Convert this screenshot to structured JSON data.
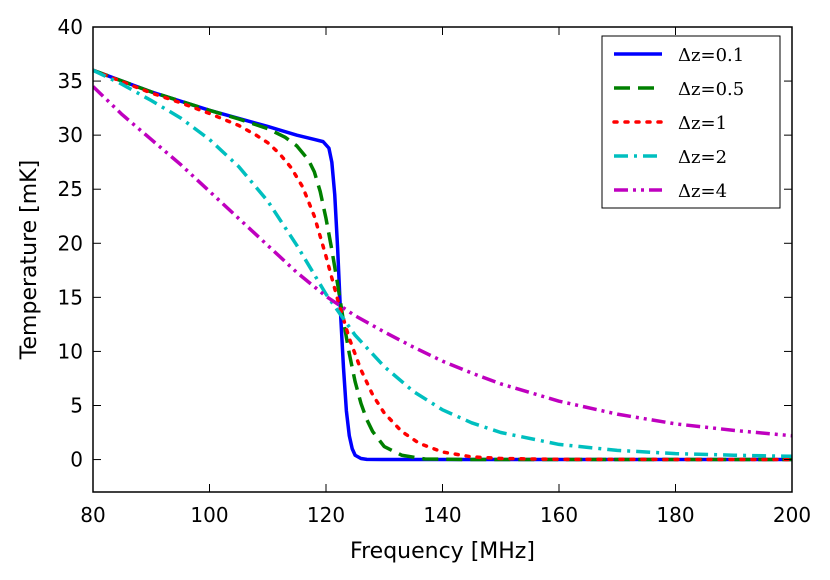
{
  "chart_data": {
    "type": "line",
    "xlabel": "Frequency [MHz]",
    "ylabel": "Temperature [mK]",
    "xlim": [
      80,
      200
    ],
    "ylim": [
      -3,
      40
    ],
    "xticks": [
      80,
      100,
      120,
      140,
      160,
      180,
      200
    ],
    "yticks": [
      0,
      5,
      10,
      15,
      20,
      25,
      30,
      35,
      40
    ],
    "legend_position": "top-right",
    "grid": false,
    "series": [
      {
        "name": "Δz=0.1",
        "color": "#0000ff",
        "dash": "solid",
        "x": [
          80,
          90,
          100,
          110,
          115,
          118,
          119.5,
          120.5,
          121,
          121.5,
          122,
          122.5,
          123,
          123.5,
          124,
          124.5,
          125,
          126,
          127,
          130,
          150,
          200
        ],
        "y": [
          36.0,
          34.0,
          32.3,
          30.8,
          30.0,
          29.6,
          29.4,
          28.8,
          27.5,
          24.5,
          19.5,
          13.5,
          8.5,
          4.5,
          2.2,
          1.0,
          0.4,
          0.1,
          0.02,
          0,
          0,
          0
        ]
      },
      {
        "name": "Δz=0.5",
        "color": "#008000",
        "dash": "dashed",
        "x": [
          80,
          90,
          100,
          105,
          110,
          113,
          115,
          117,
          118,
          119,
          120,
          121,
          122,
          123,
          124,
          125,
          126,
          127,
          128,
          130,
          133,
          137,
          145,
          200
        ],
        "y": [
          36.0,
          34.0,
          32.3,
          31.5,
          30.6,
          29.8,
          29.0,
          27.7,
          26.6,
          24.8,
          22.3,
          19.4,
          16.2,
          12.8,
          9.8,
          7.2,
          5.2,
          3.7,
          2.6,
          1.2,
          0.4,
          0.05,
          0,
          0
        ]
      },
      {
        "name": "Δz=1",
        "color": "#ff0000",
        "dash": "dotted",
        "x": [
          80,
          90,
          95,
          100,
          105,
          108,
          110,
          112,
          114,
          116,
          118,
          120,
          122,
          124,
          126,
          128,
          130,
          133,
          136,
          140,
          145,
          150,
          160,
          200
        ],
        "y": [
          36.0,
          33.9,
          33.0,
          32.0,
          30.9,
          30.0,
          29.3,
          28.3,
          27.0,
          25.2,
          22.5,
          18.8,
          14.8,
          11.2,
          8.3,
          6.0,
          4.3,
          2.6,
          1.5,
          0.7,
          0.25,
          0.1,
          0.02,
          0
        ]
      },
      {
        "name": "Δz=2",
        "color": "#00bfbf",
        "dash": "dashdot",
        "x": [
          80,
          85,
          90,
          95,
          100,
          105,
          110,
          115,
          120,
          125,
          130,
          135,
          140,
          145,
          150,
          160,
          170,
          180,
          190,
          200
        ],
        "y": [
          36.0,
          34.7,
          33.2,
          31.6,
          29.6,
          27.1,
          23.9,
          19.8,
          15.3,
          11.5,
          8.6,
          6.3,
          4.6,
          3.4,
          2.5,
          1.4,
          0.85,
          0.55,
          0.4,
          0.3
        ]
      },
      {
        "name": "Δz=4",
        "color": "#bf00bf",
        "dash": "dashdotdot",
        "x": [
          80,
          85,
          90,
          95,
          100,
          105,
          110,
          115,
          120,
          125,
          130,
          135,
          140,
          145,
          150,
          160,
          170,
          180,
          190,
          200
        ],
        "y": [
          34.5,
          31.9,
          29.6,
          27.3,
          24.8,
          22.3,
          19.8,
          17.3,
          15.1,
          13.3,
          11.8,
          10.4,
          9.1,
          8.0,
          7.0,
          5.4,
          4.2,
          3.3,
          2.7,
          2.2
        ]
      }
    ]
  }
}
